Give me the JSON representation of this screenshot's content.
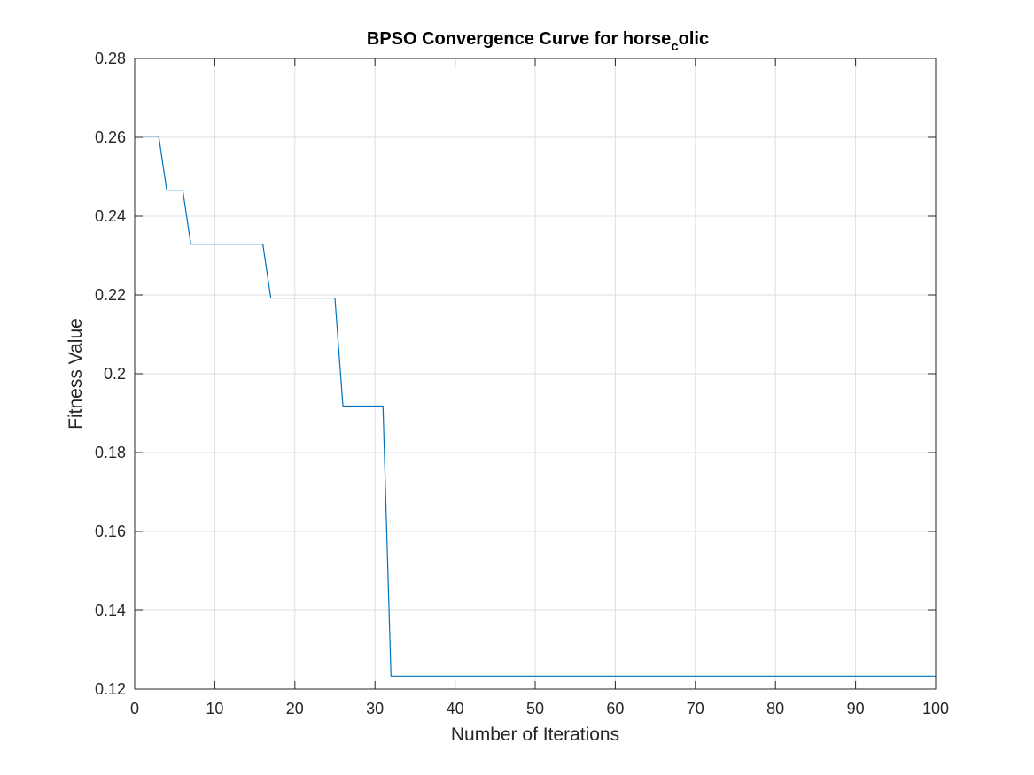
{
  "chart_data": {
    "type": "line",
    "title": {
      "main": "BPSO Convergence Curve for horse",
      "subscript": "c",
      "tail": "olic"
    },
    "xlabel": "Number of Iterations",
    "ylabel": "Fitness Value",
    "xlim": [
      0,
      100
    ],
    "ylim": [
      0.12,
      0.28
    ],
    "xticks": [
      0,
      10,
      20,
      30,
      40,
      50,
      60,
      70,
      80,
      90,
      100
    ],
    "xtick_labels": [
      "0",
      "10",
      "20",
      "30",
      "40",
      "50",
      "60",
      "70",
      "80",
      "90",
      "100"
    ],
    "yticks": [
      0.12,
      0.14,
      0.16,
      0.18,
      0.2,
      0.22,
      0.24,
      0.26,
      0.28
    ],
    "ytick_labels": [
      "0.12",
      "0.14",
      "0.16",
      "0.18",
      "0.2",
      "0.22",
      "0.24",
      "0.26",
      "0.28"
    ],
    "grid": true,
    "series": [
      {
        "color": "#0072BD",
        "x": [
          1,
          3,
          4,
          6,
          7,
          16,
          17,
          25,
          26,
          31,
          32,
          100
        ],
        "y": [
          0.2603,
          0.2603,
          0.2466,
          0.2466,
          0.2329,
          0.2329,
          0.2192,
          0.2192,
          0.1918,
          0.1918,
          0.1233,
          0.1233
        ]
      }
    ]
  }
}
